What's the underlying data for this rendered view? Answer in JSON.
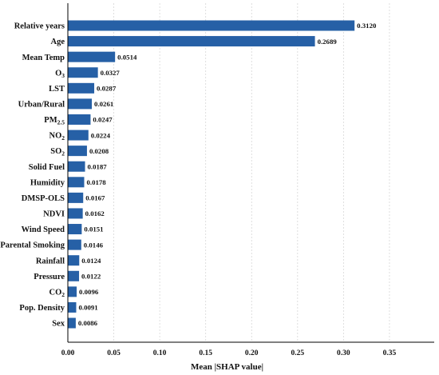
{
  "chart_data": {
    "type": "bar",
    "orientation": "horizontal",
    "categories": [
      "Relative years",
      "Age",
      "Mean Temp",
      "O3",
      "LST",
      "Urban/Rural",
      "PM2.5",
      "NO2",
      "SO2",
      "Solid Fuel",
      "Humidity",
      "DMSP-OLS",
      "NDVI",
      "Wind Speed",
      "Parental Smoking",
      "Rainfall",
      "Pressure",
      "CO2",
      "Pop. Density",
      "Sex"
    ],
    "category_labels": [
      {
        "main": "Relative years",
        "sub": ""
      },
      {
        "main": "Age",
        "sub": ""
      },
      {
        "main": "Mean Temp",
        "sub": ""
      },
      {
        "main": "O",
        "sub": "3"
      },
      {
        "main": "LST",
        "sub": ""
      },
      {
        "main": "Urban/Rural",
        "sub": ""
      },
      {
        "main": "PM",
        "sub": "2.5"
      },
      {
        "main": "NO",
        "sub": "2"
      },
      {
        "main": "SO",
        "sub": "2"
      },
      {
        "main": "Solid Fuel",
        "sub": ""
      },
      {
        "main": "Humidity",
        "sub": ""
      },
      {
        "main": "DMSP-OLS",
        "sub": ""
      },
      {
        "main": "NDVI",
        "sub": ""
      },
      {
        "main": "Wind Speed",
        "sub": ""
      },
      {
        "main": "Parental Smoking",
        "sub": ""
      },
      {
        "main": "Rainfall",
        "sub": ""
      },
      {
        "main": "Pressure",
        "sub": ""
      },
      {
        "main": "CO",
        "sub": "2"
      },
      {
        "main": "Pop. Density",
        "sub": ""
      },
      {
        "main": "Sex",
        "sub": ""
      }
    ],
    "values": [
      0.312,
      0.2689,
      0.0514,
      0.0327,
      0.0287,
      0.0261,
      0.0247,
      0.0224,
      0.0208,
      0.0187,
      0.0178,
      0.0167,
      0.0162,
      0.0151,
      0.0146,
      0.0124,
      0.0122,
      0.0096,
      0.0091,
      0.0086
    ],
    "value_labels": [
      "0.3120",
      "0.2689",
      "0.0514",
      "0.0327",
      "0.0287",
      "0.0261",
      "0.0247",
      "0.0224",
      "0.0208",
      "0.0187",
      "0.0178",
      "0.0167",
      "0.0162",
      "0.0151",
      "0.0146",
      "0.0124",
      "0.0122",
      "0.0096",
      "0.0091",
      "0.0086"
    ],
    "xticks": [
      0.0,
      0.05,
      0.1,
      0.15,
      0.2,
      0.25,
      0.3,
      0.35
    ],
    "xtick_labels": [
      "0.00",
      "0.05",
      "0.10",
      "0.15",
      "0.20",
      "0.25",
      "0.30",
      "0.35"
    ],
    "xlim": [
      0,
      0.3987
    ],
    "xlabel": "Mean |SHAP value|",
    "ylabel": "",
    "title": "",
    "grid": "vertical dashed",
    "bar_color": "#2660a6"
  }
}
